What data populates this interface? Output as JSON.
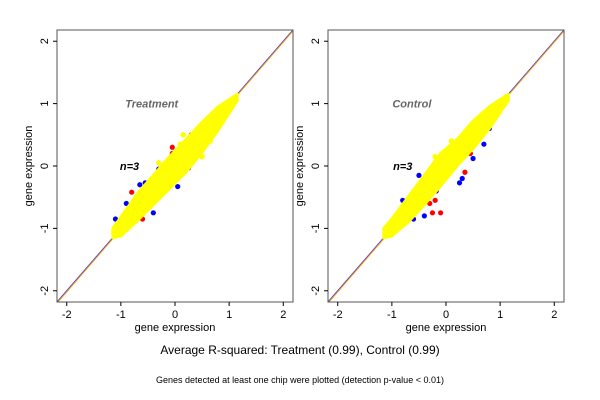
{
  "caption": "Average R-squared: Treatment (0.99), Control (0.99)",
  "footnote": "Genes detected at least one chip were plotted (detection p-value < 0.01)",
  "colors": {
    "red": "#ff0000",
    "blue": "#0000ff",
    "yellow": "#ffff00",
    "line_blue": "#3333ff",
    "line_orange": "#ffa500",
    "title_gray": "#666666"
  },
  "chart_data": [
    {
      "type": "scatter",
      "title": "Treatment",
      "annotation": {
        "text": "n=3",
        "x": -0.84,
        "y": 0.0
      },
      "title_pos": {
        "x": -0.43,
        "y": 1.0
      },
      "xlabel": "gene expression",
      "ylabel": "gene expression",
      "xlim": [
        -2.18,
        2.18
      ],
      "ylim": [
        -2.18,
        2.18
      ],
      "xticks": [
        "-2",
        "-1",
        "0",
        "1",
        "2"
      ],
      "yticks": [
        "-2",
        "-1",
        "0",
        "1",
        "2"
      ],
      "reference_line": "y = x",
      "yellow_band": [
        [
          -1.15,
          -1.15,
          -1.0
        ],
        [
          -1.0,
          -1.12,
          -0.82
        ],
        [
          -0.7,
          -0.88,
          -0.45
        ],
        [
          -0.4,
          -0.62,
          -0.15
        ],
        [
          -0.1,
          -0.36,
          0.15
        ],
        [
          0.2,
          -0.1,
          0.42
        ],
        [
          0.5,
          0.22,
          0.7
        ],
        [
          0.8,
          0.58,
          0.95
        ],
        [
          1.15,
          1.05,
          1.15
        ]
      ],
      "series": [
        {
          "color": "red",
          "points": [
            [
              -0.05,
              0.3
            ],
            [
              -0.8,
              -0.42
            ],
            [
              0.05,
              0.25
            ],
            [
              -0.35,
              -0.5
            ],
            [
              0.3,
              0.1
            ],
            [
              0.55,
              0.6
            ],
            [
              0.3,
              0.5
            ],
            [
              -0.6,
              -0.85
            ],
            [
              0.7,
              0.75
            ],
            [
              -0.05,
              0.2
            ]
          ]
        },
        {
          "color": "blue",
          "points": [
            [
              -0.65,
              -0.3
            ],
            [
              -0.55,
              -0.27
            ],
            [
              0.05,
              -0.33
            ],
            [
              -0.4,
              -0.75
            ],
            [
              -1.1,
              -0.85
            ],
            [
              -0.3,
              -0.05
            ],
            [
              0.25,
              -0.03
            ],
            [
              -0.9,
              -0.6
            ]
          ]
        },
        {
          "color": "yellow",
          "points": [
            [
              0.3,
              0.45
            ],
            [
              0.65,
              0.4
            ],
            [
              0.5,
              0.15
            ],
            [
              -0.3,
              0.05
            ],
            [
              0.15,
              0.5
            ],
            [
              0.1,
              0.35
            ]
          ]
        }
      ]
    },
    {
      "type": "scatter",
      "title": "Control",
      "annotation": {
        "text": "n=3",
        "x": -0.8,
        "y": 0.0
      },
      "title_pos": {
        "x": -0.63,
        "y": 1.0
      },
      "xlabel": "gene expression",
      "ylabel": "gene expression",
      "xlim": [
        -2.18,
        2.18
      ],
      "ylim": [
        -2.18,
        2.18
      ],
      "xticks": [
        "-2",
        "-1",
        "0",
        "1",
        "2"
      ],
      "yticks": [
        "-2",
        "-1",
        "0",
        "1",
        "2"
      ],
      "reference_line": "y = x",
      "yellow_band": [
        [
          -1.15,
          -1.15,
          -1.0
        ],
        [
          -1.0,
          -1.12,
          -0.85
        ],
        [
          -0.7,
          -0.9,
          -0.5
        ],
        [
          -0.4,
          -0.62,
          -0.15
        ],
        [
          -0.1,
          -0.32,
          0.2
        ],
        [
          0.2,
          0.0,
          0.42
        ],
        [
          0.5,
          0.28,
          0.72
        ],
        [
          0.8,
          0.6,
          0.95
        ],
        [
          1.15,
          1.05,
          1.15
        ]
      ],
      "series": [
        {
          "color": "red",
          "points": [
            [
              -0.25,
              -0.75
            ],
            [
              -0.1,
              -0.75
            ],
            [
              -0.2,
              -0.55
            ],
            [
              0.35,
              -0.1
            ],
            [
              0.45,
              0.2
            ],
            [
              -0.5,
              -0.35
            ],
            [
              0.2,
              0.05
            ],
            [
              -0.3,
              -0.6
            ],
            [
              -0.6,
              -0.45
            ]
          ]
        },
        {
          "color": "blue",
          "points": [
            [
              0.7,
              0.35
            ],
            [
              0.8,
              0.6
            ],
            [
              0.5,
              0.12
            ],
            [
              0.35,
              0.45
            ],
            [
              0.3,
              -0.2
            ],
            [
              0.25,
              -0.27
            ],
            [
              -0.5,
              -0.15
            ],
            [
              -0.6,
              -0.85
            ],
            [
              -0.4,
              -0.8
            ],
            [
              -0.18,
              -0.4
            ],
            [
              0.05,
              -0.05
            ],
            [
              -0.8,
              -0.55
            ],
            [
              0.65,
              0.55
            ]
          ]
        },
        {
          "color": "yellow",
          "points": [
            [
              0.1,
              0.4
            ],
            [
              -0.2,
              0.15
            ],
            [
              -0.1,
              0.1
            ]
          ]
        }
      ]
    }
  ]
}
